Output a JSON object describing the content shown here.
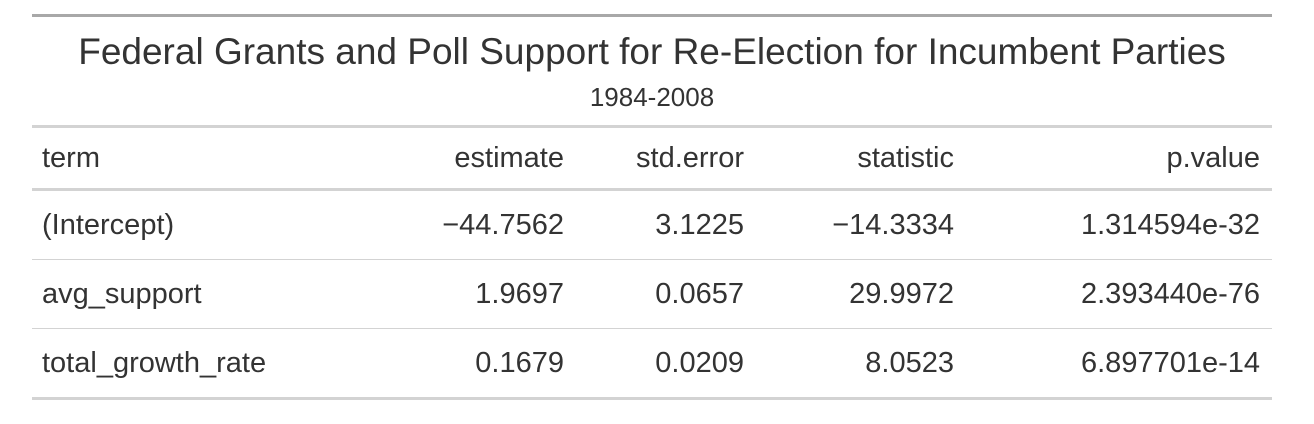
{
  "chart_data": {
    "type": "table",
    "title": "Federal Grants and Poll Support for Re-Election for Incumbent Parties",
    "subtitle": "1984-2008",
    "columns": [
      "term",
      "estimate",
      "std.error",
      "statistic",
      "p.value"
    ],
    "rows": [
      {
        "term": "(Intercept)",
        "estimate": "−44.7562",
        "std_error": "3.1225",
        "statistic": "−14.3334",
        "p_value": "1.314594e-32"
      },
      {
        "term": "avg_support",
        "estimate": "1.9697",
        "std_error": "0.0657",
        "statistic": "29.9972",
        "p_value": "2.393440e-76"
      },
      {
        "term": "total_growth_rate",
        "estimate": "0.1679",
        "std_error": "0.0209",
        "statistic": "8.0523",
        "p_value": "6.897701e-14"
      }
    ]
  },
  "colors": {
    "text": "#333333",
    "top_rule": "#a8a8a8",
    "row_rule": "#d3d3d3"
  }
}
